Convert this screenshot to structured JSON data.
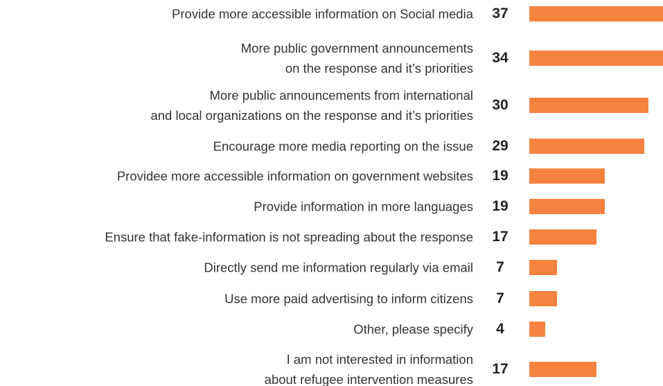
{
  "chart_data": {
    "type": "bar",
    "orientation": "horizontal",
    "categories": [
      "Provide more accessible information on Social media",
      "More public government announcements\non the response and it’s priorities",
      "More public announcements from international\nand local organizations on the response and it’s priorities",
      "Encourage more media reporting on the issue",
      "Providee more accessible information on government websites",
      "Provide information in more languages",
      "Ensure that fake-information is not spreading about the response",
      "Directly send me information regularly via email",
      "Use more paid advertising to inform citizens",
      "Other, please specify",
      "I am not interested in information\nabout refugee intervention measures"
    ],
    "values": [
      37,
      34,
      30,
      29,
      19,
      19,
      17,
      7,
      7,
      4,
      17
    ],
    "color": "#f5823f"
  }
}
